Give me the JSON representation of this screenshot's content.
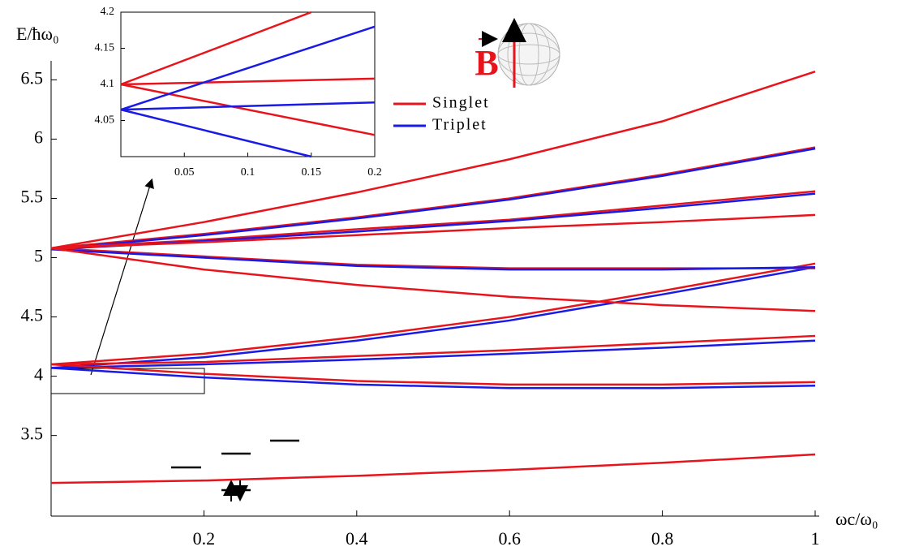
{
  "chart_data": [
    {
      "type": "line",
      "y_label": "E/ħω₀",
      "x_label": "ωc/ω₀",
      "legend": [
        {
          "name": "Singlet",
          "color": "#e8141c"
        },
        {
          "name": "Triplet",
          "color": "#1a1ae6"
        }
      ],
      "xlim": [
        0,
        1
      ],
      "xticks": [
        0.2,
        0.4,
        0.6,
        0.8,
        1
      ],
      "ylim": [
        2.82,
        6.66
      ],
      "yticks": [
        3.5,
        4,
        4.5,
        5,
        5.5,
        6,
        6.5
      ],
      "series": [
        {
          "color": "#e8141c",
          "x": [
            0,
            0.2,
            0.4,
            0.6,
            0.8,
            1
          ],
          "values": [
            3.1,
            3.12,
            3.16,
            3.21,
            3.27,
            3.34
          ]
        },
        {
          "color": "#e8141c",
          "x": [
            0,
            0.2,
            0.4,
            0.6,
            0.8,
            1
          ],
          "values": [
            4.1,
            4.19,
            4.33,
            4.5,
            4.72,
            4.95
          ]
        },
        {
          "color": "#1a1ae6",
          "x": [
            0,
            0.2,
            0.4,
            0.6,
            0.8,
            1
          ],
          "values": [
            4.07,
            4.16,
            4.3,
            4.47,
            4.69,
            4.92
          ]
        },
        {
          "color": "#e8141c",
          "x": [
            0,
            0.2,
            0.4,
            0.6,
            0.8,
            1
          ],
          "values": [
            4.1,
            4.12,
            4.17,
            4.22,
            4.28,
            4.34
          ]
        },
        {
          "color": "#1a1ae6",
          "x": [
            0,
            0.2,
            0.4,
            0.6,
            0.8,
            1
          ],
          "values": [
            4.07,
            4.1,
            4.14,
            4.19,
            4.24,
            4.3
          ]
        },
        {
          "color": "#e8141c",
          "x": [
            0,
            0.2,
            0.4,
            0.6,
            0.8,
            1
          ],
          "values": [
            4.1,
            4.02,
            3.96,
            3.93,
            3.93,
            3.95
          ]
        },
        {
          "color": "#1a1ae6",
          "x": [
            0,
            0.2,
            0.4,
            0.6,
            0.8,
            1
          ],
          "values": [
            4.07,
            3.99,
            3.93,
            3.9,
            3.9,
            3.92
          ]
        },
        {
          "color": "#e8141c",
          "x": [
            0,
            0.2,
            0.4,
            0.6,
            0.8,
            1
          ],
          "values": [
            5.08,
            5.3,
            5.55,
            5.83,
            6.15,
            6.57
          ]
        },
        {
          "color": "#e8141c",
          "x": [
            0,
            0.2,
            0.4,
            0.6,
            0.8,
            1
          ],
          "values": [
            5.08,
            5.2,
            5.34,
            5.5,
            5.7,
            5.93
          ]
        },
        {
          "color": "#1a1ae6",
          "x": [
            0,
            0.2,
            0.4,
            0.6,
            0.8,
            1
          ],
          "values": [
            5.07,
            5.19,
            5.33,
            5.49,
            5.69,
            5.92
          ]
        },
        {
          "color": "#e8141c",
          "x": [
            0,
            0.2,
            0.4,
            0.6,
            0.8,
            1
          ],
          "values": [
            5.08,
            5.15,
            5.24,
            5.32,
            5.44,
            5.56
          ]
        },
        {
          "color": "#1a1ae6",
          "x": [
            0,
            0.2,
            0.4,
            0.6,
            0.8,
            1
          ],
          "values": [
            5.07,
            5.14,
            5.22,
            5.31,
            5.42,
            5.54
          ]
        },
        {
          "color": "#e8141c",
          "x": [
            0,
            0.2,
            0.4,
            0.6,
            0.8,
            1
          ],
          "values": [
            5.08,
            5.13,
            5.19,
            5.25,
            5.3,
            5.36
          ]
        },
        {
          "color": "#e8141c",
          "x": [
            0,
            0.2,
            0.4,
            0.6,
            0.8,
            1
          ],
          "values": [
            5.08,
            5.01,
            4.94,
            4.91,
            4.91,
            4.91
          ]
        },
        {
          "color": "#1a1ae6",
          "x": [
            0,
            0.2,
            0.4,
            0.6,
            0.8,
            1
          ],
          "values": [
            5.07,
            5.0,
            4.93,
            4.9,
            4.9,
            4.92
          ]
        },
        {
          "color": "#e8141c",
          "x": [
            0,
            0.2,
            0.4,
            0.6,
            0.8,
            1
          ],
          "values": [
            5.08,
            4.9,
            4.77,
            4.67,
            4.6,
            4.55
          ]
        }
      ]
    },
    {
      "type": "line",
      "xlim": [
        0,
        0.2
      ],
      "xticks": [
        0.05,
        0.1,
        0.15,
        0.2
      ],
      "ylim": [
        4.0,
        4.2
      ],
      "yticks": [
        4.05,
        4.1,
        4.15,
        4.2
      ],
      "series": [
        {
          "color": "#e8141c",
          "x": [
            0,
            0.15
          ],
          "values": [
            4.1,
            4.2
          ]
        },
        {
          "color": "#e8141c",
          "x": [
            0,
            0.2
          ],
          "values": [
            4.1,
            4.108
          ]
        },
        {
          "color": "#e8141c",
          "x": [
            0,
            0.2
          ],
          "values": [
            4.1,
            4.03
          ]
        },
        {
          "color": "#1a1ae6",
          "x": [
            0,
            0.2
          ],
          "values": [
            4.065,
            4.18
          ]
        },
        {
          "color": "#1a1ae6",
          "x": [
            0,
            0.2
          ],
          "values": [
            4.065,
            4.075
          ]
        },
        {
          "color": "#1a1ae6",
          "x": [
            0,
            0.15
          ],
          "values": [
            4.065,
            4.0
          ]
        }
      ]
    }
  ]
}
